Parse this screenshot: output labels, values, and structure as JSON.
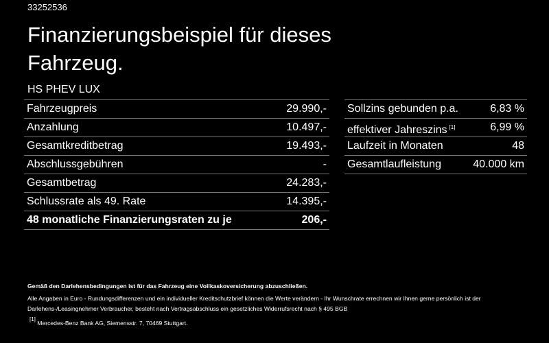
{
  "id": "33252536",
  "title": "Finanzierungsbeispiel für dieses Fahrzeug.",
  "model": "HS PHEV LUX",
  "left_table": {
    "rows": [
      {
        "label": "Fahrzeugpreis",
        "value": "29.990,-"
      },
      {
        "label": "Anzahlung",
        "value": "10.497,-"
      },
      {
        "label": "Gesamtkreditbetrag",
        "value": "19.493,-"
      },
      {
        "label": "Abschlussgebühren",
        "value": "-"
      },
      {
        "label": "Gesamtbetrag",
        "value": "24.283,-"
      },
      {
        "label": "Schlussrate als 49. Rate",
        "value": "14.395,-"
      },
      {
        "label": "48 monatliche Finanzierungsraten zu je",
        "value": "206,-"
      }
    ]
  },
  "right_table": {
    "rows": [
      {
        "label": "Sollzins gebunden p.a.",
        "value": "6,83 %"
      },
      {
        "label": "effektiver Jahreszins",
        "note": "[1]",
        "value": "6,99 %"
      },
      {
        "label": "Laufzeit in Monaten",
        "value": "48"
      },
      {
        "label": "Gesamtlaufleistung",
        "value": "40.000 km"
      }
    ]
  },
  "footer": {
    "bold": "Gemäß den Darlehensbedingungen ist für das Fahrzeug eine Vollkaskoversicherung abzuschließen.",
    "text": "Alle Angaben in Euro - Rundungsdifferenzen und ein individueller Kreditschutzbrief können die Werte verändern - Ihr Wunschrate errechnen wir Ihnen gerne persönlich ist der Darlehens-/Leasingnehmer Verbraucher, besteht nach Vertragsabschluss ein gesetzliches Widerrufsrecht nach § 495 BGB",
    "footnote": {
      "marker": "[1]",
      "text": "Mercedes-Benz Bank AG, Siemensstr. 7, 70469 Stuttgart."
    }
  }
}
